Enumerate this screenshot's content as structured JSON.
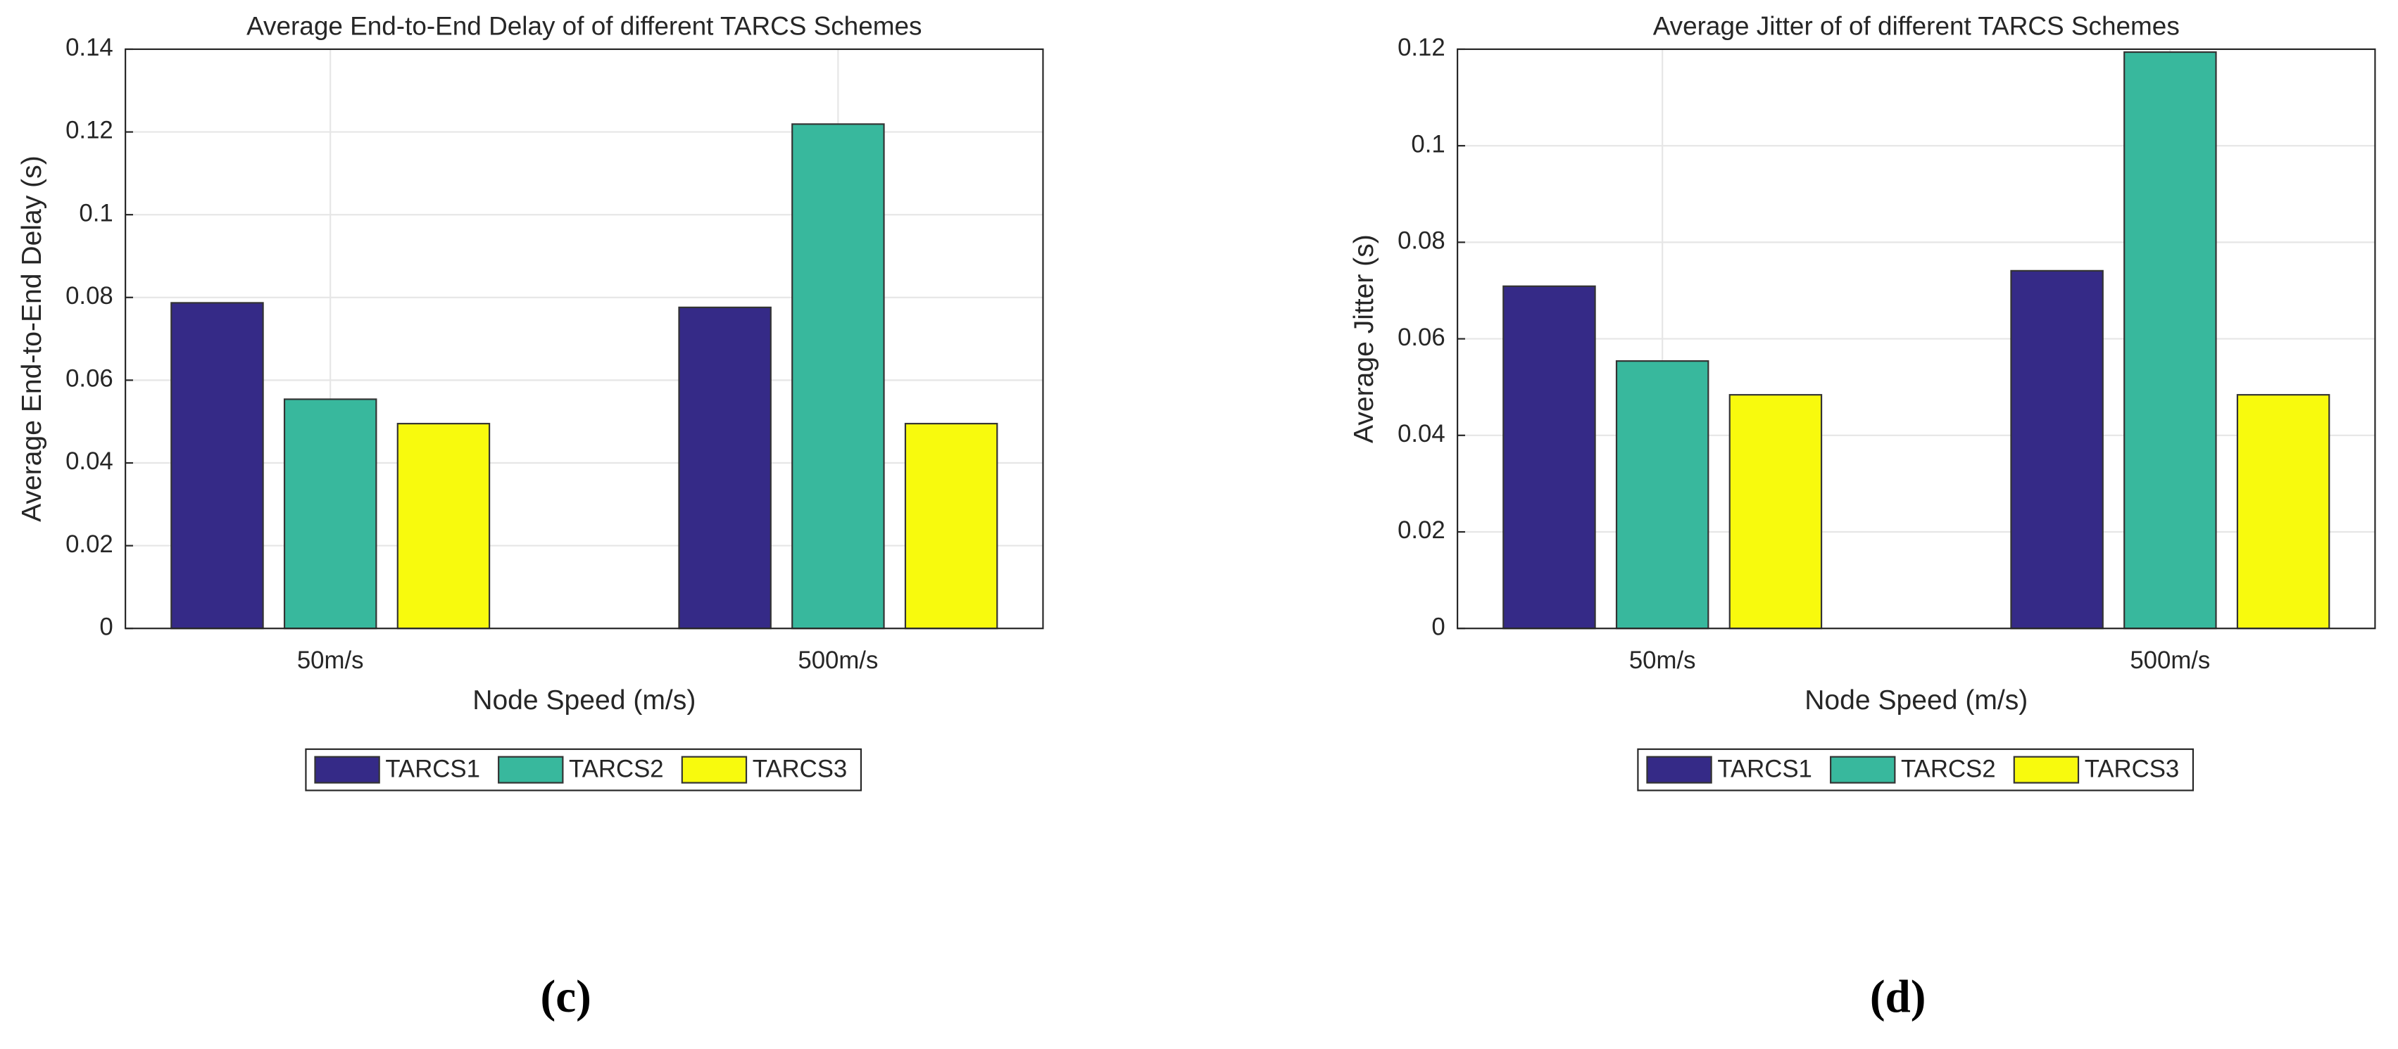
{
  "chart_data": [
    {
      "type": "bar",
      "title": "Average End-to-End Delay of of different TARCS Schemes",
      "caption": "(c)",
      "x_label": "Node Speed (m/s)",
      "y_label": "Average End-to-End Delay (s)",
      "categories": [
        "50m/s",
        "500m/s"
      ],
      "series": [
        {
          "name": "TARCS1",
          "color": "#352a87",
          "values": [
            0.0787,
            0.0776
          ]
        },
        {
          "name": "TARCS2",
          "color": "#38b89d",
          "values": [
            0.0554,
            0.1219
          ]
        },
        {
          "name": "TARCS3",
          "color": "#f8fa0d",
          "values": [
            0.0495,
            0.0495
          ]
        }
      ],
      "ylim": [
        0,
        0.14
      ],
      "yticks": [
        0,
        0.02,
        0.04,
        0.06,
        0.08,
        0.1,
        0.12,
        0.14
      ],
      "grid": true,
      "legend": "bottom"
    },
    {
      "type": "bar",
      "title": "Average Jitter of of different TARCS Schemes",
      "caption": "(d)",
      "x_label": "Node Speed (m/s)",
      "y_label": "Average Jitter (s)",
      "categories": [
        "50m/s",
        "500m/s"
      ],
      "series": [
        {
          "name": "TARCS1",
          "color": "#352a87",
          "values": [
            0.0709,
            0.0741
          ]
        },
        {
          "name": "TARCS2",
          "color": "#38b89d",
          "values": [
            0.0554,
            0.1194
          ]
        },
        {
          "name": "TARCS3",
          "color": "#f8fa0d",
          "values": [
            0.0484,
            0.0484
          ]
        }
      ],
      "ylim": [
        0,
        0.12
      ],
      "yticks": [
        0,
        0.02,
        0.04,
        0.06,
        0.08,
        0.1,
        0.12
      ],
      "grid": true,
      "legend": "bottom"
    }
  ]
}
